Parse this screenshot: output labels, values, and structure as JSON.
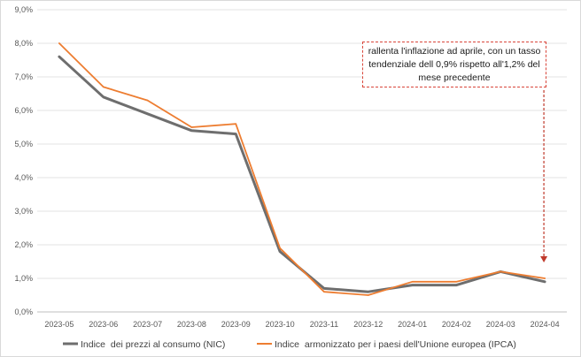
{
  "chart_data": {
    "type": "line",
    "title": "",
    "xlabel": "",
    "ylabel": "",
    "categories": [
      "2023-05",
      "2023-06",
      "2023-07",
      "2023-08",
      "2023-09",
      "2023-10",
      "2023-11",
      "2023-12",
      "2024-01",
      "2024-02",
      "2024-03",
      "2024-04"
    ],
    "yticks": [
      "0,0%",
      "1,0%",
      "2,0%",
      "3,0%",
      "4,0%",
      "5,0%",
      "6,0%",
      "7,0%",
      "8,0%",
      "9,0%"
    ],
    "ylim": [
      0,
      9
    ],
    "grid": true,
    "legend_position": "bottom",
    "series": [
      {
        "name": "Indice  dei prezzi al consumo (NIC)",
        "color": "#6e6e6e",
        "values": [
          7.6,
          6.4,
          5.9,
          5.4,
          5.3,
          1.8,
          0.7,
          0.6,
          0.8,
          0.8,
          1.2,
          0.9
        ]
      },
      {
        "name": "Indice  armonizzato per i paesi dell'Unione europea (IPCA)",
        "color": "#ed7d31",
        "values": [
          8.0,
          6.7,
          6.3,
          5.5,
          5.6,
          1.9,
          0.6,
          0.5,
          0.9,
          0.9,
          1.2,
          1.0
        ]
      }
    ],
    "annotation": "rallenta l'inflazione ad aprile, con un tasso tendenziale dell 0,9% rispetto all'1,2% del mese precedente"
  }
}
